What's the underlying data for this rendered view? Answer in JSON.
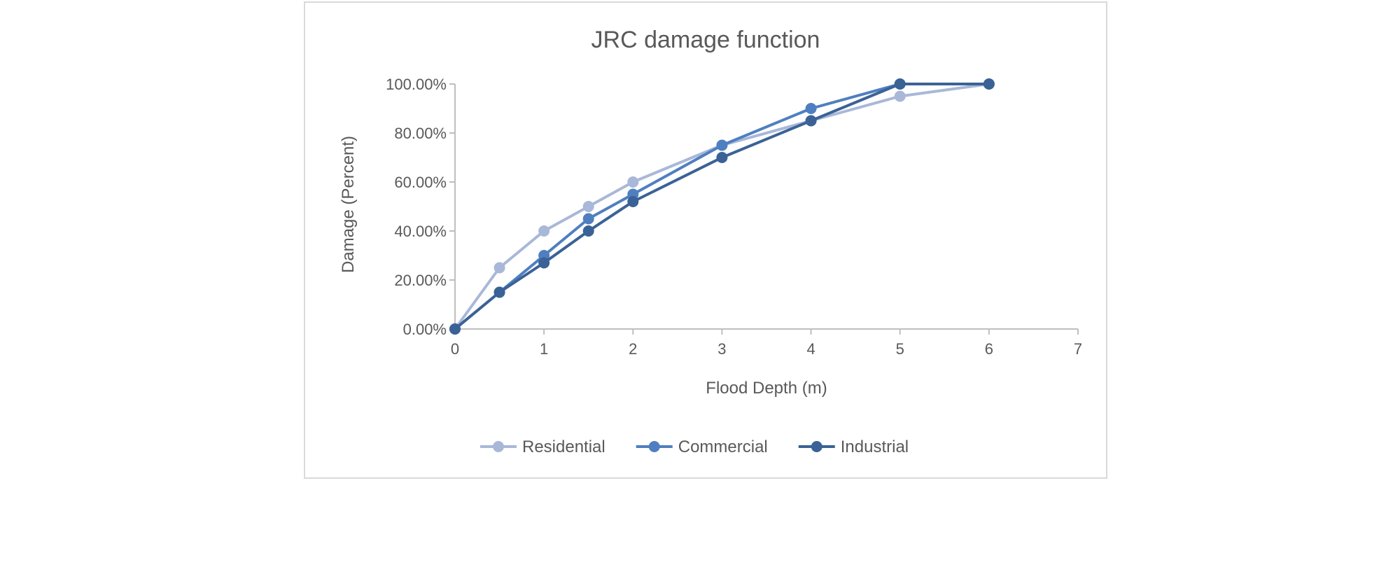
{
  "chart_data": {
    "type": "line",
    "title": "JRC damage function",
    "xlabel": "Flood Depth (m)",
    "ylabel": "Damage (Percent)",
    "xlim": [
      0,
      7
    ],
    "ylim": [
      0,
      1
    ],
    "x_ticks": [
      "0",
      "1",
      "2",
      "3",
      "4",
      "5",
      "6",
      "7"
    ],
    "y_ticks": [
      "0.00%",
      "20.00%",
      "40.00%",
      "60.00%",
      "80.00%",
      "100.00%"
    ],
    "grid": false,
    "legend_position": "bottom",
    "x": [
      0,
      0.5,
      1,
      1.5,
      2,
      3,
      4,
      5,
      6
    ],
    "series": [
      {
        "name": "Residential",
        "color": "#a9b8d8",
        "values": [
          0,
          0.25,
          0.4,
          0.5,
          0.6,
          0.75,
          0.85,
          0.95,
          1.0
        ]
      },
      {
        "name": "Commercial",
        "color": "#4f7fc0",
        "values": [
          0,
          0.15,
          0.3,
          0.45,
          0.55,
          0.75,
          0.9,
          1.0,
          1.0
        ]
      },
      {
        "name": "Industrial",
        "color": "#3b6296",
        "values": [
          0,
          0.15,
          0.27,
          0.4,
          0.52,
          0.7,
          0.85,
          1.0,
          1.0
        ]
      }
    ]
  }
}
